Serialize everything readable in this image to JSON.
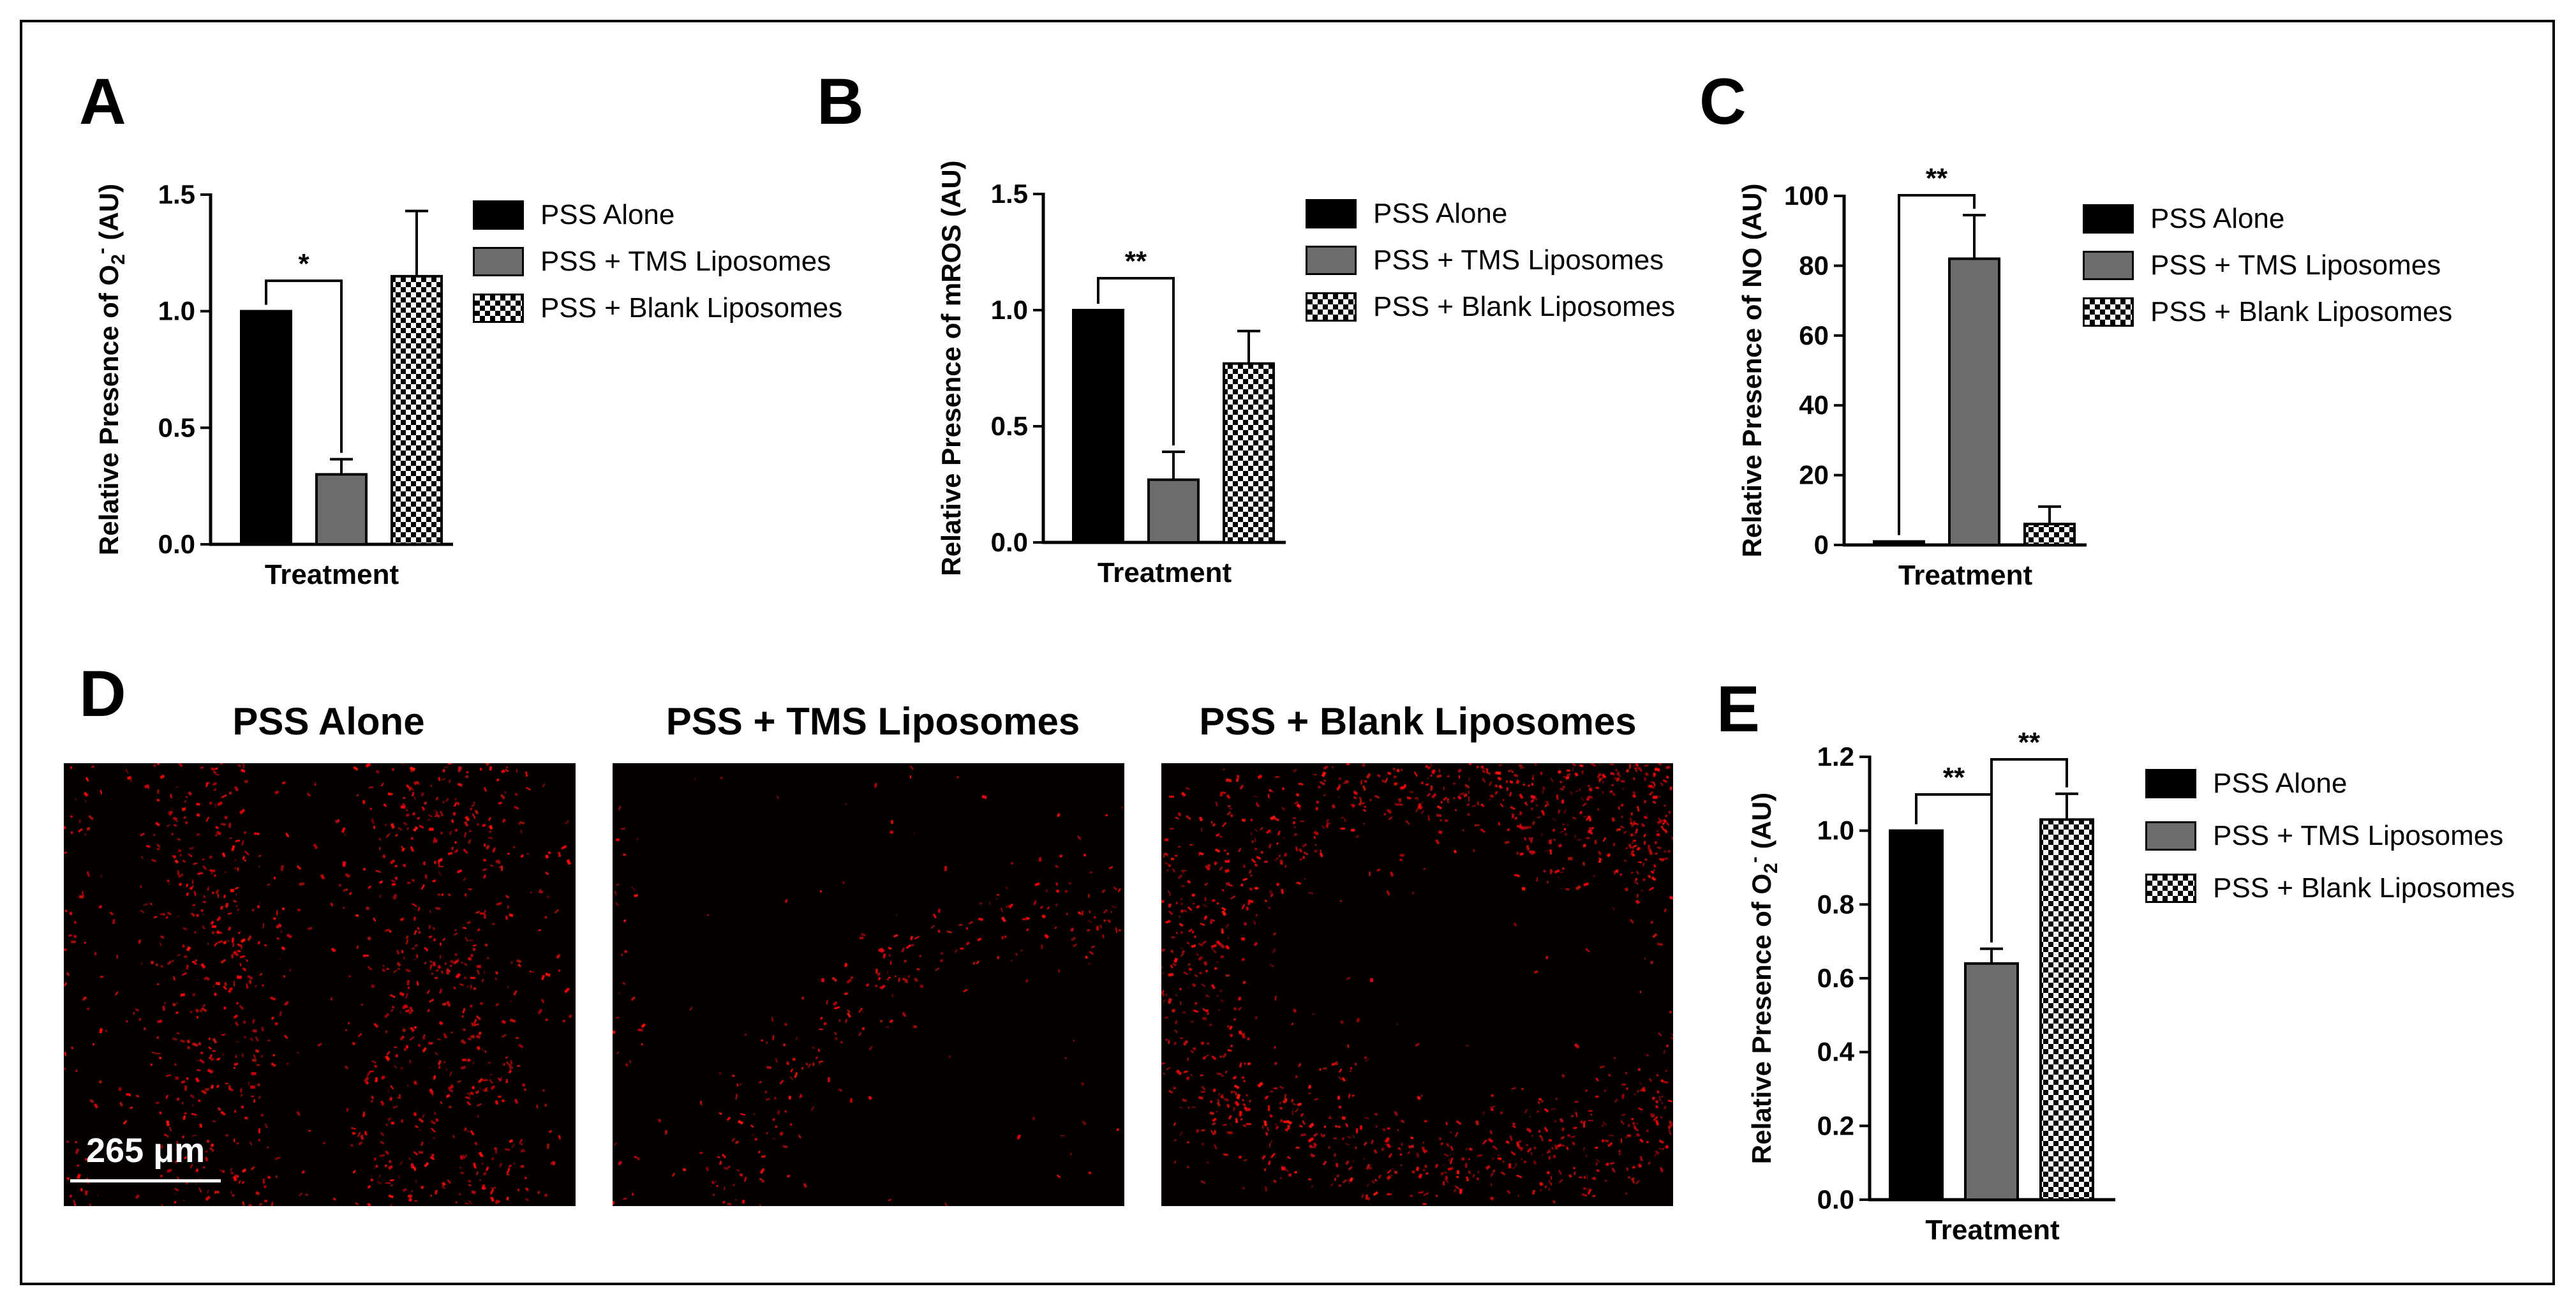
{
  "panels": {
    "A": "A",
    "B": "B",
    "C": "C",
    "D": "D",
    "E": "E"
  },
  "colors": {
    "pss_alone": "#000000",
    "tms_liposomes": "#6d6d6d",
    "blank_liposomes": "checkerboard",
    "fluorescence": "#e0141c"
  },
  "legend": {
    "pss_alone": "PSS Alone",
    "tms": "PSS + TMS Liposomes",
    "blank": "PSS + Blank Liposomes"
  },
  "chart_data": [
    {
      "id": "A",
      "type": "bar",
      "categories": [
        "PSS Alone",
        "PSS + TMS Liposomes",
        "PSS + Blank Liposomes"
      ],
      "values": [
        1.0,
        0.3,
        1.15
      ],
      "errors": [
        0,
        0.065,
        0.28
      ],
      "xlabel": "Treatment",
      "ylabel_main": "Relative Presence of O",
      "ylabel_sub": "2",
      "ylabel_sup": "-",
      "ylabel_tail": " (AU)",
      "ylim": [
        0,
        1.5
      ],
      "yticks": [
        "0.0",
        "0.5",
        "1.0",
        "1.5"
      ],
      "significance": [
        {
          "from": 0,
          "to": 1,
          "label": "*"
        }
      ]
    },
    {
      "id": "B",
      "type": "bar",
      "categories": [
        "PSS Alone",
        "PSS + TMS Liposomes",
        "PSS + Blank Liposomes"
      ],
      "values": [
        1.0,
        0.27,
        0.77
      ],
      "errors": [
        0,
        0.12,
        0.14
      ],
      "xlabel": "Treatment",
      "ylabel_main": "Relative Presence of mROS (AU)",
      "ylim": [
        0,
        1.5
      ],
      "yticks": [
        "0.0",
        "0.5",
        "1.0",
        "1.5"
      ],
      "significance": [
        {
          "from": 0,
          "to": 1,
          "label": "**"
        }
      ]
    },
    {
      "id": "C",
      "type": "bar",
      "categories": [
        "PSS Alone",
        "PSS + TMS Liposomes",
        "PSS + Blank Liposomes"
      ],
      "values": [
        1.0,
        82,
        6
      ],
      "errors": [
        0,
        12.5,
        5
      ],
      "xlabel": "Treatment",
      "ylabel_main": "Relative Presence of NO (AU)",
      "ylim": [
        0,
        100
      ],
      "yticks": [
        "0",
        "20",
        "40",
        "60",
        "80",
        "100"
      ],
      "significance": [
        {
          "from": 0,
          "to": 1,
          "label": "**"
        }
      ]
    },
    {
      "id": "E",
      "type": "bar",
      "categories": [
        "PSS Alone",
        "PSS + TMS Liposomes",
        "PSS + Blank Liposomes"
      ],
      "values": [
        1.0,
        0.64,
        1.03
      ],
      "errors": [
        0,
        0.04,
        0.07
      ],
      "xlabel": "Treatment",
      "ylabel_main": "Relative Presence of O",
      "ylabel_sub": "2",
      "ylabel_sup": "-",
      "ylabel_tail": " (AU)",
      "ylim": [
        0,
        1.2
      ],
      "yticks": [
        "0.0",
        "0.2",
        "0.4",
        "0.6",
        "0.8",
        "1.0",
        "1.2"
      ],
      "significance": [
        {
          "from": 0,
          "to": 1,
          "label": "**"
        },
        {
          "from": 1,
          "to": 2,
          "label": "**"
        }
      ]
    }
  ],
  "micrographs": {
    "titles": [
      "PSS Alone",
      "PSS + TMS Liposomes",
      "PSS + Blank Liposomes"
    ],
    "scale_bar": "265 μm"
  }
}
